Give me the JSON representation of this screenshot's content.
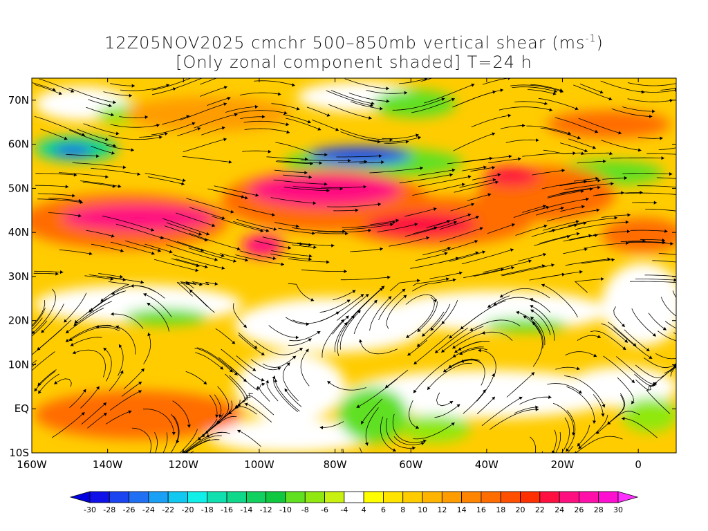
{
  "title": {
    "line1_main": "12Z05NOV2025 cmchr 500–850mb vertical shear (ms",
    "line1_sup": "-1",
    "line1_close": ")",
    "line2": "[Only zonal component shaded] T=24 h"
  },
  "axes": {
    "lon_labels": [
      "160W",
      "140W",
      "120W",
      "100W",
      "80W",
      "60W",
      "40W",
      "20W",
      "0"
    ],
    "lon_values": [
      -160,
      -140,
      -120,
      -100,
      -80,
      -60,
      -40,
      -20,
      0
    ],
    "lat_labels": [
      "70N",
      "60N",
      "50N",
      "40N",
      "30N",
      "20N",
      "10N",
      "EQ",
      "10S"
    ],
    "lat_values": [
      70,
      60,
      50,
      40,
      30,
      20,
      10,
      0,
      -10
    ],
    "lon_range": [
      -160,
      10
    ],
    "lat_range": [
      -10,
      75
    ]
  },
  "colorbar": {
    "labels": [
      "-30",
      "-28",
      "-26",
      "-24",
      "-22",
      "-20",
      "-18",
      "-16",
      "-14",
      "-12",
      "-10",
      "-8",
      "-6",
      "-4",
      "4",
      "6",
      "8",
      "10",
      "12",
      "14",
      "16",
      "18",
      "20",
      "22",
      "24",
      "26",
      "28",
      "30"
    ],
    "colors": [
      "#1010e8",
      "#1a44f0",
      "#2070f4",
      "#1aa0f4",
      "#10c8f0",
      "#10f0e8",
      "#10e0b0",
      "#10d88a",
      "#10d060",
      "#10c840",
      "#60e020",
      "#90e810",
      "#c8f010",
      "#ffffff",
      "#ffff00",
      "#ffe400",
      "#ffcc00",
      "#ffb400",
      "#ff9c00",
      "#ff8400",
      "#ff6c00",
      "#ff5000",
      "#ff3000",
      "#ff1040",
      "#ff1080",
      "#ff10a8",
      "#ff10d0"
    ],
    "low_arrow_color": "#0000e0",
    "high_arrow_color": "#ff30ff"
  }
}
